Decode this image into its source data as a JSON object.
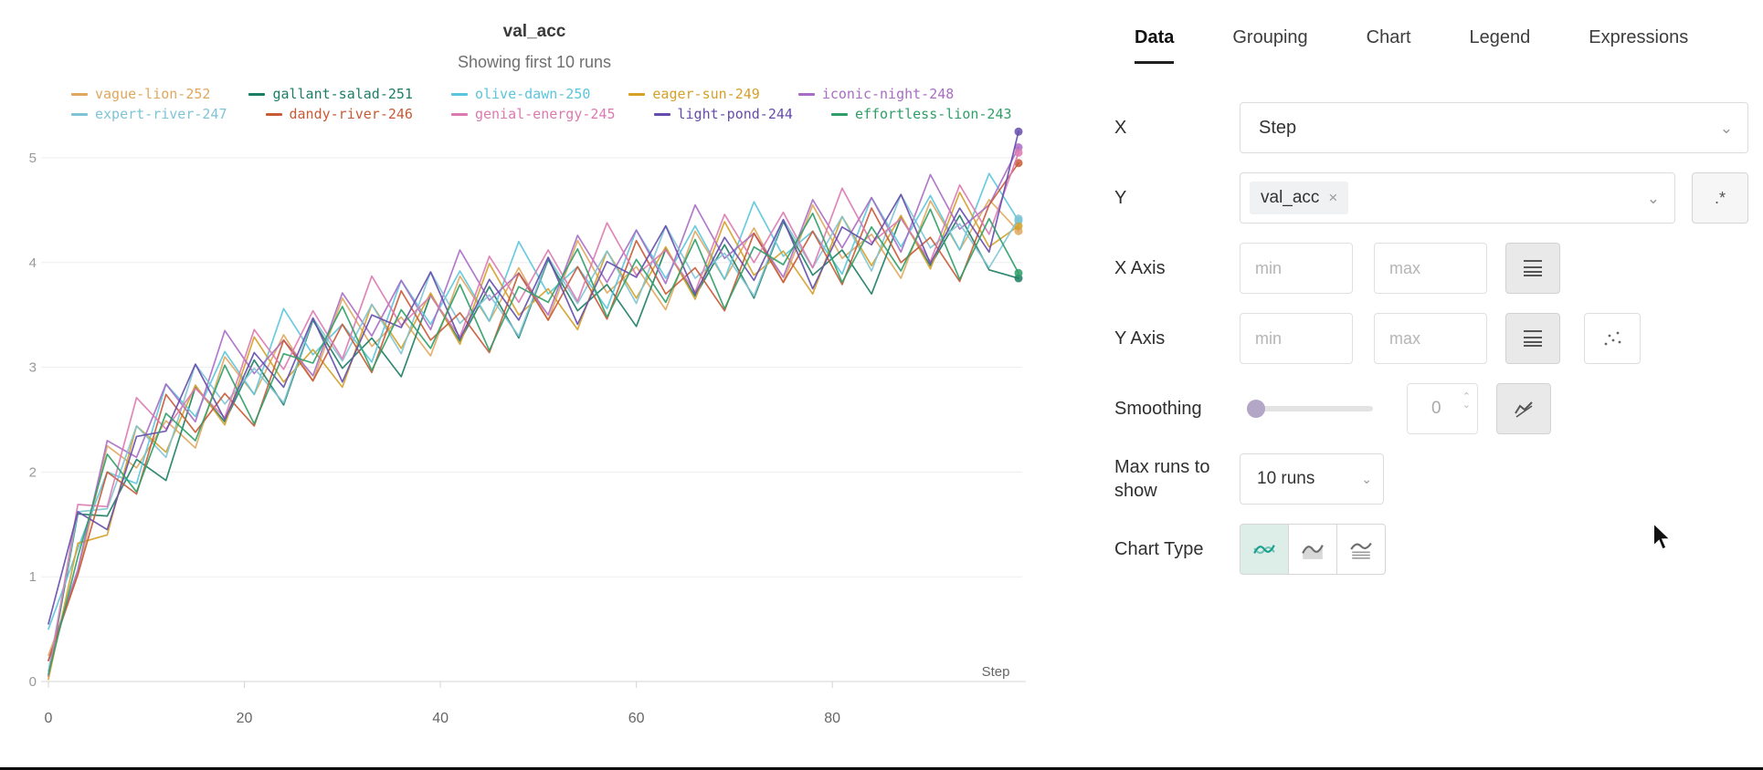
{
  "chart_data": {
    "type": "line",
    "title": "val_acc",
    "subtitle": "Showing first 10 runs",
    "xlabel": "Step",
    "xticks": [
      0,
      20,
      40,
      60,
      80
    ],
    "yticks": [
      0,
      1,
      2,
      3,
      4,
      5
    ],
    "xlim": [
      0,
      99
    ],
    "ylim": [
      0,
      5.5
    ],
    "grid": true,
    "legend_position": "top",
    "x": [
      0,
      3,
      6,
      9,
      12,
      15,
      18,
      21,
      24,
      27,
      30,
      33,
      36,
      39,
      42,
      45,
      48,
      51,
      54,
      57,
      60,
      63,
      66,
      69,
      72,
      75,
      78,
      81,
      84,
      87,
      90,
      93,
      96,
      99
    ],
    "series": [
      {
        "name": "vague-lion-252",
        "color": "#e0a75e",
        "values": [
          0.25,
          1.02,
          2.25,
          2.04,
          2.49,
          2.23,
          3.1,
          2.74,
          3.31,
          2.87,
          3.66,
          3.2,
          3.48,
          3.11,
          3.87,
          3.44,
          3.95,
          3.45,
          4.21,
          3.71,
          3.96,
          3.55,
          4.3,
          3.84,
          4.33,
          3.81,
          4.55,
          4.04,
          4.27,
          3.85,
          4.59,
          4.12,
          4.6,
          4.3
        ]
      },
      {
        "name": "gallant-salad-251",
        "color": "#1d7d64",
        "values": [
          0.05,
          1.6,
          1.58,
          2.12,
          1.92,
          2.81,
          2.48,
          3.07,
          2.64,
          3.45,
          2.99,
          3.28,
          2.91,
          3.69,
          3.25,
          3.77,
          3.28,
          4.03,
          3.54,
          3.79,
          3.39,
          4.13,
          3.68,
          4.17,
          3.66,
          4.39,
          3.88,
          4.12,
          3.7,
          4.43,
          3.97,
          4.45,
          3.93,
          3.85
        ]
      },
      {
        "name": "olive-dawn-250",
        "color": "#5bc5db",
        "values": [
          0.5,
          1.27,
          2.0,
          1.89,
          2.84,
          2.53,
          3.15,
          2.74,
          3.56,
          3.12,
          3.41,
          3.05,
          3.83,
          3.41,
          3.92,
          3.44,
          4.2,
          3.7,
          3.96,
          3.56,
          4.31,
          3.85,
          4.35,
          3.84,
          4.58,
          4.06,
          4.3,
          3.89,
          4.62,
          4.15,
          4.64,
          4.12,
          4.85,
          4.4
        ]
      },
      {
        "name": "eager-sun-249",
        "color": "#d4a129",
        "values": [
          0.02,
          1.32,
          1.4,
          2.44,
          2.19,
          2.83,
          2.45,
          3.29,
          2.86,
          3.17,
          2.81,
          3.6,
          3.18,
          3.71,
          3.22,
          3.99,
          3.5,
          3.75,
          3.36,
          4.11,
          3.66,
          4.15,
          3.65,
          4.39,
          3.88,
          4.11,
          3.7,
          4.44,
          3.97,
          4.45,
          3.94,
          4.67,
          4.15,
          4.35
        ]
      },
      {
        "name": "iconic-night-248",
        "color": "#a96cc4",
        "values": [
          0.2,
          1.07,
          2.3,
          2.14,
          2.84,
          2.48,
          3.35,
          2.94,
          3.26,
          2.92,
          3.71,
          3.3,
          3.83,
          3.36,
          4.12,
          3.64,
          3.9,
          3.5,
          4.26,
          3.81,
          4.31,
          3.8,
          4.55,
          4.04,
          4.28,
          3.86,
          4.6,
          4.14,
          4.62,
          4.1,
          4.84,
          4.32,
          4.55,
          5.1
        ]
      },
      {
        "name": "expert-river-247",
        "color": "#7fc4d6",
        "values": [
          0.1,
          1.62,
          1.65,
          2.44,
          2.14,
          3.03,
          2.65,
          2.99,
          2.66,
          3.47,
          3.06,
          3.6,
          3.13,
          3.91,
          3.42,
          3.69,
          3.3,
          4.05,
          3.61,
          4.11,
          3.61,
          4.35,
          3.85,
          4.09,
          3.68,
          4.41,
          3.95,
          4.44,
          3.92,
          4.65,
          4.14,
          4.37,
          3.95,
          4.42
        ]
      },
      {
        "name": "dandy-river-246",
        "color": "#c85a36",
        "values": [
          0.2,
          1.02,
          2.0,
          1.79,
          2.74,
          2.38,
          2.75,
          2.44,
          3.26,
          2.87,
          3.41,
          2.95,
          3.73,
          3.26,
          3.52,
          3.14,
          3.9,
          3.45,
          3.96,
          3.46,
          4.21,
          3.7,
          3.95,
          3.54,
          4.28,
          3.81,
          4.3,
          3.79,
          4.52,
          4.0,
          4.24,
          3.82,
          4.55,
          4.95
        ]
      },
      {
        "name": "genial-energy-245",
        "color": "#dc7ab0",
        "values": [
          0.05,
          1.69,
          1.67,
          2.71,
          2.41,
          2.8,
          2.52,
          3.36,
          2.98,
          3.54,
          3.08,
          3.87,
          3.4,
          3.68,
          3.29,
          4.06,
          3.62,
          4.12,
          3.63,
          4.38,
          3.88,
          4.12,
          3.72,
          4.46,
          4.0,
          4.48,
          3.95,
          4.71,
          4.19,
          4.42,
          4.01,
          4.74,
          4.27,
          5.05
        ]
      },
      {
        "name": "light-pond-244",
        "color": "#654cab",
        "values": [
          0.55,
          1.62,
          1.45,
          2.34,
          2.39,
          3.03,
          2.5,
          3.14,
          2.81,
          3.47,
          2.86,
          3.5,
          3.38,
          3.91,
          3.27,
          3.84,
          3.45,
          4.05,
          3.41,
          4.01,
          3.86,
          4.35,
          3.7,
          4.24,
          3.83,
          4.41,
          3.75,
          4.34,
          4.17,
          4.65,
          3.99,
          4.52,
          4.1,
          5.25
        ]
      },
      {
        "name": "effortless-lion-243",
        "color": "#2f9e68",
        "values": [
          0.07,
          1.19,
          2.17,
          1.81,
          2.56,
          2.3,
          3.02,
          2.46,
          3.13,
          3.04,
          3.58,
          2.97,
          3.55,
          3.18,
          3.79,
          3.16,
          3.77,
          3.62,
          4.13,
          3.48,
          4.03,
          3.62,
          4.22,
          3.56,
          4.15,
          3.98,
          4.47,
          3.81,
          4.34,
          3.92,
          4.51,
          3.84,
          4.42,
          3.9
        ]
      }
    ]
  },
  "panel": {
    "tabs": [
      {
        "label": "Data",
        "active": true
      },
      {
        "label": "Grouping",
        "active": false
      },
      {
        "label": "Chart",
        "active": false
      },
      {
        "label": "Legend",
        "active": false
      },
      {
        "label": "Expressions",
        "active": false
      }
    ],
    "x_row": {
      "label": "X",
      "value": "Step"
    },
    "y_row": {
      "label": "Y",
      "selected": "val_acc",
      "regex_label": ".*"
    },
    "x_axis_row": {
      "label": "X Axis",
      "min_placeholder": "min",
      "max_placeholder": "max"
    },
    "y_axis_row": {
      "label": "Y Axis",
      "min_placeholder": "min",
      "max_placeholder": "max"
    },
    "smoothing_row": {
      "label": "Smoothing",
      "value": "0"
    },
    "max_runs_row": {
      "label": "Max runs to show",
      "value": "10 runs"
    },
    "chart_type_row": {
      "label": "Chart Type"
    }
  },
  "icons": {
    "chevron_down": "⌄",
    "close": "×",
    "stepper_up": "⌃",
    "stepper_down": "⌄"
  },
  "colors": {
    "accent": "#18a08c",
    "accent_bg": "#ddeee9",
    "slider_thumb": "#b3a6c7",
    "grid_line": "#ededed",
    "axis_line": "#d4d4d4",
    "tick_text": "#999999"
  }
}
